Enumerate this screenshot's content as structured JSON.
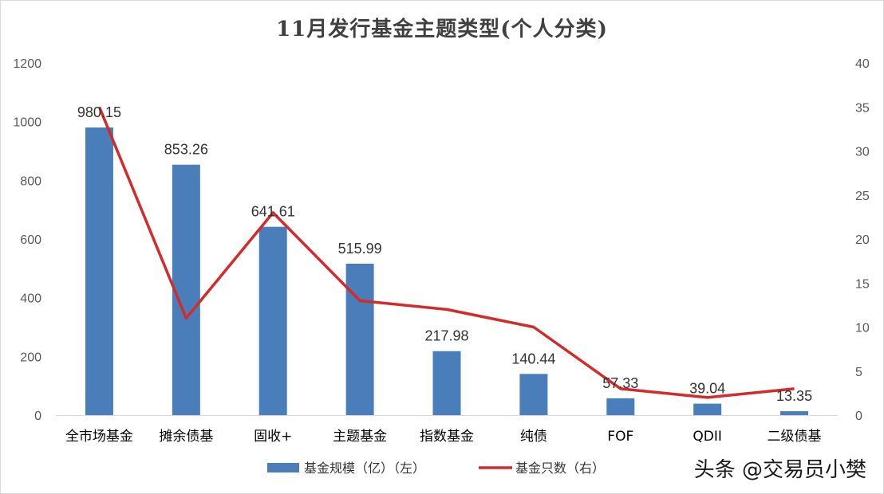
{
  "chart_data": {
    "type": "bar",
    "title": "11月发行基金主题类型(个人分类)",
    "categories": [
      "全市场基金",
      "摊余债基",
      "固收+",
      "主题基金",
      "指数基金",
      "纯债",
      "FOF",
      "QDII",
      "二级债基"
    ],
    "series": [
      {
        "name": "基金规模（亿）（左）",
        "type": "bar",
        "axis": "left",
        "color": "#4a7ebb",
        "values": [
          980.15,
          853.26,
          641.61,
          515.99,
          217.98,
          140.44,
          57.33,
          39.04,
          13.35
        ],
        "labels": [
          "980.15",
          "853.26",
          "641.61",
          "515.99",
          "217.98",
          "140.44",
          "57.33",
          "39.04",
          "13.35"
        ]
      },
      {
        "name": "基金只数（右）",
        "type": "line",
        "axis": "right",
        "color": "#d42a2a",
        "values": [
          35,
          11,
          23,
          13,
          12,
          10,
          3,
          2,
          3
        ]
      }
    ],
    "ylim_left": [
      0,
      1200
    ],
    "yticks_left": [
      "0",
      "200",
      "400",
      "600",
      "800",
      "1000",
      "1200"
    ],
    "ylim_right": [
      0,
      40
    ],
    "yticks_right": [
      "0",
      "5",
      "10",
      "15",
      "20",
      "25",
      "30",
      "35",
      "40"
    ],
    "grid": false,
    "legend_position": "bottom"
  },
  "watermark": "头条 @交易员小樊"
}
